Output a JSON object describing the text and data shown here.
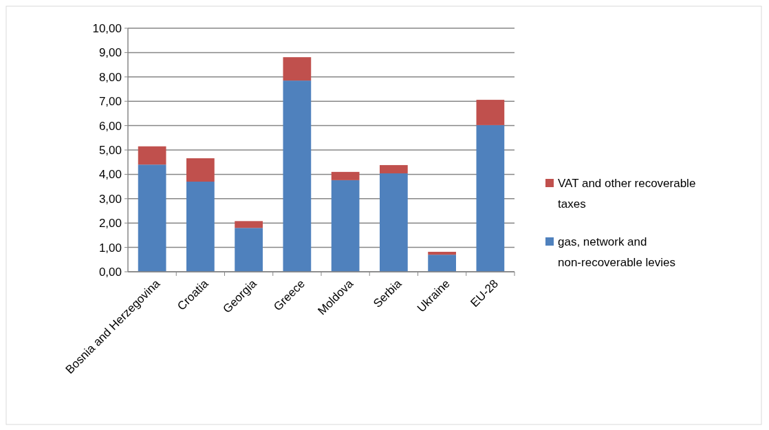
{
  "chart_data": {
    "type": "bar",
    "stacked": true,
    "categories": [
      "Bosnia and Herzegovina",
      "Croatia",
      "Georgia",
      "Greece",
      "Moldova",
      "Serbia",
      "Ukraine",
      "EU-28"
    ],
    "series": [
      {
        "name": "gas, network and non-recoverable levies",
        "color": "#4f81bd",
        "values": [
          4.4,
          3.7,
          1.8,
          7.85,
          3.76,
          4.04,
          0.7,
          6.02
        ]
      },
      {
        "name": "VAT and other recoverable taxes",
        "color": "#c0504d",
        "values": [
          0.75,
          0.96,
          0.28,
          0.96,
          0.34,
          0.34,
          0.12,
          1.04
        ]
      }
    ],
    "ylim": [
      0,
      10
    ],
    "yticks": [
      {
        "value": 0,
        "label": "0,00"
      },
      {
        "value": 1,
        "label": "1,00"
      },
      {
        "value": 2,
        "label": "2,00"
      },
      {
        "value": 3,
        "label": "3,00"
      },
      {
        "value": 4,
        "label": "4,00"
      },
      {
        "value": 5,
        "label": "5,00"
      },
      {
        "value": 6,
        "label": "6,00"
      },
      {
        "value": 7,
        "label": "7,00"
      },
      {
        "value": 8,
        "label": "8,00"
      },
      {
        "value": 9,
        "label": "9,00"
      },
      {
        "value": 10,
        "label": "10,00"
      }
    ],
    "grid": "y",
    "legend": "right"
  }
}
